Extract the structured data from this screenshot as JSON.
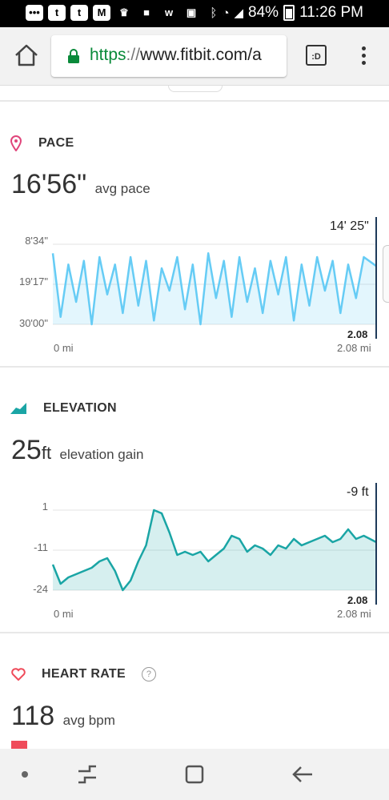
{
  "status_bar": {
    "battery": "84%",
    "time": "11:26 PM",
    "left_icons": [
      "message-icon",
      "tumblr-icon",
      "tumblr-icon",
      "gmail-icon",
      "trophy-icon",
      "chat-icon",
      "w-icon",
      "bag-icon"
    ]
  },
  "browser": {
    "url_protocol": "https",
    "url_separator": "://",
    "url_host": "www.fitbit.com/a",
    "tab_label": ":D"
  },
  "pace": {
    "title": "PACE",
    "value": "16'56\"",
    "caption": "avg pace",
    "current_value": "14' 25\"",
    "current_distance": "2.08",
    "y_ticks": [
      "8'34\"",
      "19'17\"",
      "30'00\""
    ],
    "x_start": "0 mi",
    "x_end": "2.08 mi",
    "color": "#66ccf5"
  },
  "elevation": {
    "title": "ELEVATION",
    "value": "25",
    "unit": "ft",
    "caption": "elevation gain",
    "current_value": "-9 ft",
    "current_distance": "2.08",
    "y_ticks": [
      "1",
      "-11",
      "-24"
    ],
    "x_start": "0 mi",
    "x_end": "2.08 mi",
    "color": "#1aa5a5"
  },
  "heart_rate": {
    "title": "HEART RATE",
    "value": "118",
    "caption": "avg bpm",
    "help_glyph": "?",
    "color": "#ef4b5a"
  },
  "chart_data": [
    {
      "type": "area",
      "xlabel": "",
      "ylabel": "",
      "x_range": [
        0,
        2.08
      ],
      "y_range_label": [
        "8'34\"",
        "30'00\""
      ],
      "x": [
        0,
        0.05,
        0.1,
        0.15,
        0.2,
        0.25,
        0.3,
        0.35,
        0.4,
        0.45,
        0.5,
        0.55,
        0.6,
        0.65,
        0.7,
        0.75,
        0.8,
        0.85,
        0.9,
        0.95,
        1.0,
        1.05,
        1.1,
        1.15,
        1.2,
        1.25,
        1.3,
        1.35,
        1.4,
        1.45,
        1.5,
        1.55,
        1.6,
        1.65,
        1.7,
        1.75,
        1.8,
        1.85,
        1.9,
        1.95,
        2.0,
        2.08
      ],
      "values_min_per_mi": [
        11,
        28,
        14,
        24,
        13,
        30,
        12,
        22,
        14,
        27,
        12,
        25,
        13,
        29,
        15,
        21,
        12,
        26,
        14,
        30,
        11,
        23,
        13,
        28,
        12,
        24,
        15,
        27,
        13,
        22,
        12,
        29,
        14,
        25,
        12,
        21,
        13,
        27,
        14,
        23,
        12,
        14.4
      ]
    },
    {
      "type": "area",
      "xlabel": "",
      "ylabel": "",
      "x_range": [
        0,
        2.08
      ],
      "ylim": [
        -24,
        1
      ],
      "x": [
        0,
        0.05,
        0.1,
        0.15,
        0.2,
        0.25,
        0.3,
        0.35,
        0.4,
        0.45,
        0.5,
        0.55,
        0.6,
        0.65,
        0.7,
        0.75,
        0.8,
        0.85,
        0.9,
        0.95,
        1.0,
        1.05,
        1.1,
        1.15,
        1.2,
        1.25,
        1.3,
        1.35,
        1.4,
        1.45,
        1.5,
        1.55,
        1.6,
        1.65,
        1.7,
        1.75,
        1.8,
        1.85,
        1.9,
        1.95,
        2.0,
        2.08
      ],
      "values_ft": [
        -16,
        -22,
        -20,
        -19,
        -18,
        -17,
        -15,
        -14,
        -18,
        -24,
        -21,
        -15,
        -10,
        1,
        0,
        -6,
        -13,
        -12,
        -13,
        -12,
        -15,
        -13,
        -11,
        -7,
        -8,
        -12,
        -10,
        -11,
        -13,
        -10,
        -11,
        -8,
        -10,
        -9,
        -8,
        -7,
        -9,
        -8,
        -5,
        -8,
        -7,
        -9
      ]
    }
  ]
}
